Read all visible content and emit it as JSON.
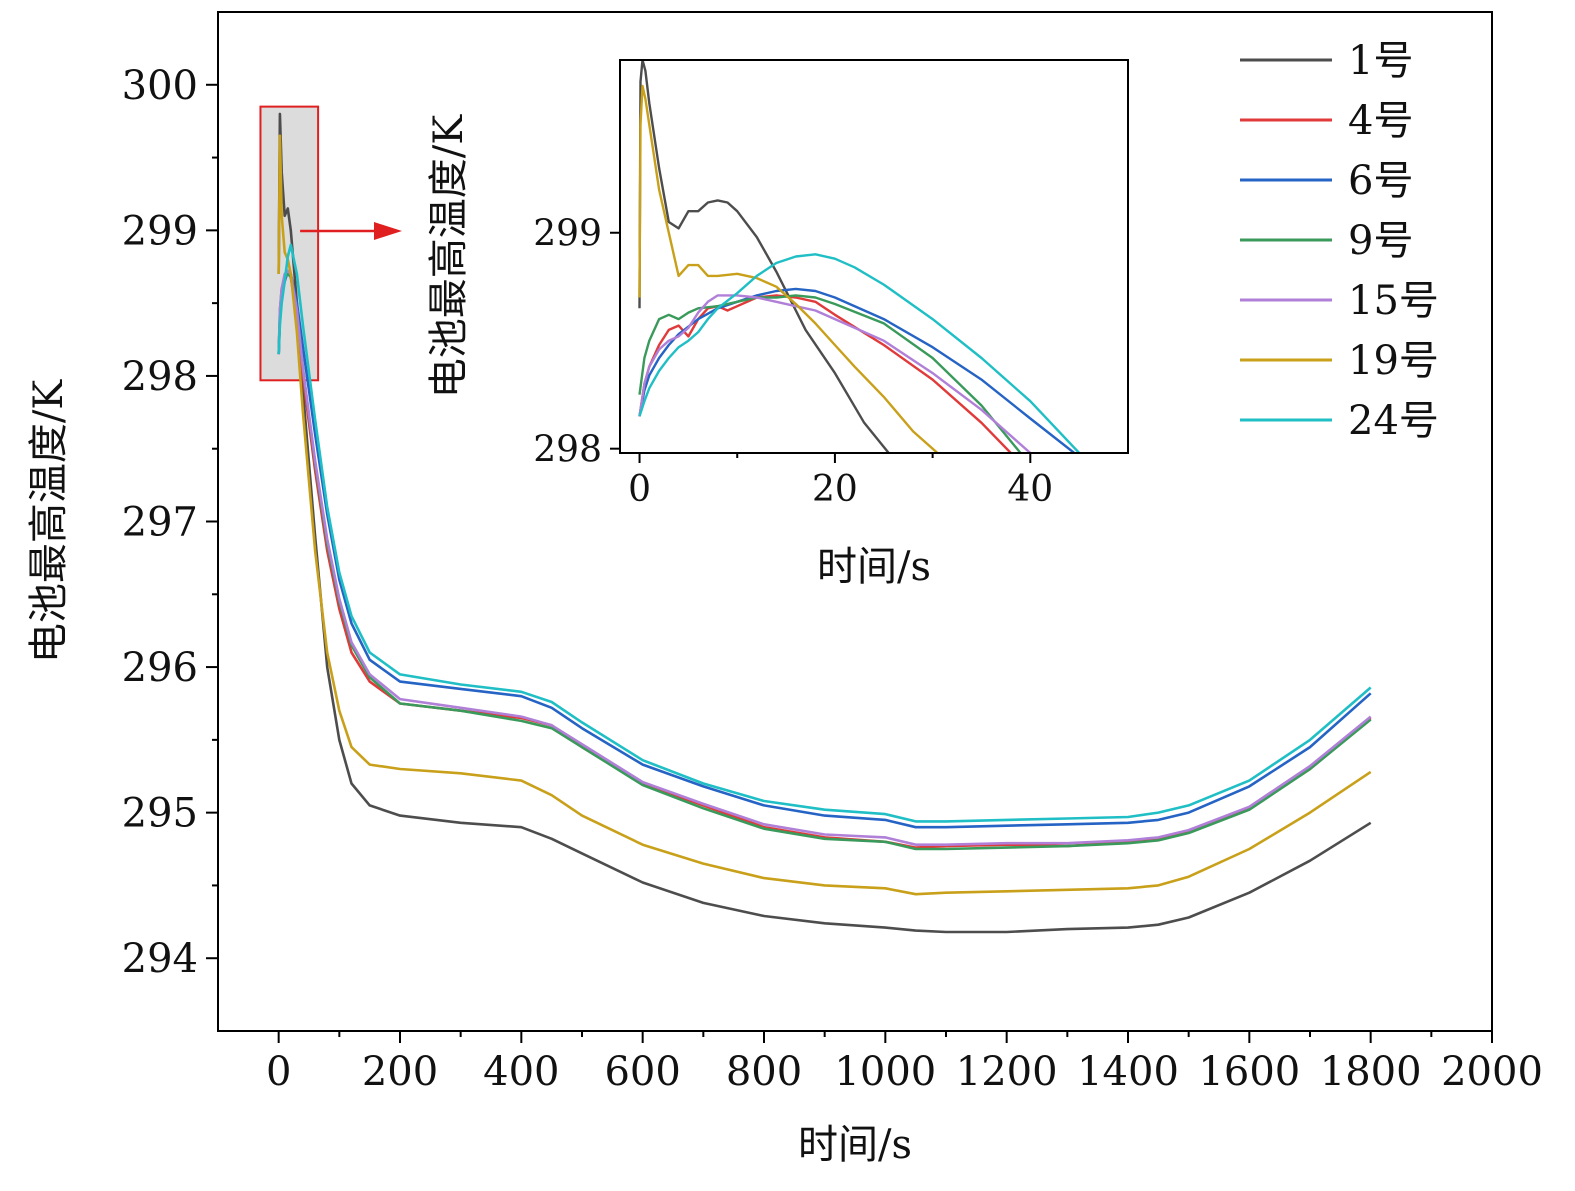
{
  "chart_data": [
    {
      "id": "main",
      "type": "line",
      "title": "",
      "xlabel": "时间/s",
      "ylabel": "电池最高温度/K",
      "xlim": [
        -100,
        2000
      ],
      "ylim": [
        293.5,
        300.5
      ],
      "xticks": [
        0,
        200,
        400,
        600,
        800,
        1000,
        1200,
        1400,
        1600,
        1800,
        2000
      ],
      "xtick_labels": [
        "0",
        "200",
        "400",
        "600",
        "800",
        "1000",
        "1200",
        "1400",
        "1600",
        "1800",
        "2000"
      ],
      "yticks": [
        294,
        295,
        296,
        297,
        298,
        299,
        300
      ],
      "ytick_labels": [
        "294",
        "295",
        "296",
        "297",
        "298",
        "299",
        "300"
      ],
      "highlight_region": {
        "x": [
          -30,
          65
        ],
        "y": [
          297.97,
          299.85
        ],
        "meaning": "enlarged in inset"
      },
      "series": [
        {
          "name": "1号",
          "color": "#4d4d4d",
          "x": [
            0,
            2,
            5,
            10,
            15,
            20,
            30,
            40,
            60,
            80,
            100,
            120,
            150,
            200,
            300,
            400,
            450,
            500,
            600,
            700,
            800,
            900,
            1000,
            1050,
            1100,
            1200,
            1300,
            1400,
            1450,
            1500,
            1600,
            1700,
            1800
          ],
          "y": [
            298.7,
            299.8,
            299.4,
            299.1,
            299.15,
            299.0,
            298.5,
            297.9,
            296.9,
            296.0,
            295.5,
            295.2,
            295.05,
            294.98,
            294.93,
            294.9,
            294.82,
            294.72,
            294.52,
            294.38,
            294.29,
            294.24,
            294.21,
            294.19,
            294.18,
            294.18,
            294.2,
            294.21,
            294.23,
            294.28,
            294.45,
            294.67,
            294.93
          ]
        },
        {
          "name": "4号",
          "color": "#e03a3a",
          "x": [
            0,
            2,
            5,
            10,
            15,
            20,
            30,
            40,
            60,
            80,
            100,
            120,
            150,
            200,
            300,
            400,
            450,
            500,
            600,
            700,
            800,
            900,
            1000,
            1050,
            1100,
            1200,
            1300,
            1400,
            1450,
            1500,
            1600,
            1700,
            1800
          ],
          "y": [
            298.15,
            298.4,
            298.55,
            298.65,
            298.72,
            298.68,
            298.4,
            298.0,
            297.35,
            296.8,
            296.4,
            296.1,
            295.9,
            295.75,
            295.7,
            295.65,
            295.6,
            295.45,
            295.2,
            295.05,
            294.9,
            294.83,
            294.8,
            294.76,
            294.77,
            294.78,
            294.77,
            294.8,
            294.82,
            294.87,
            295.03,
            295.3,
            295.65
          ]
        },
        {
          "name": "6号",
          "color": "#2563c5",
          "x": [
            0,
            2,
            5,
            10,
            15,
            20,
            30,
            40,
            60,
            80,
            100,
            120,
            150,
            200,
            300,
            400,
            450,
            500,
            600,
            700,
            800,
            900,
            1000,
            1050,
            1100,
            1200,
            1300,
            1400,
            1450,
            1500,
            1600,
            1700,
            1800
          ],
          "y": [
            298.15,
            298.4,
            298.55,
            298.65,
            298.72,
            298.7,
            298.5,
            298.2,
            297.6,
            297.05,
            296.6,
            296.3,
            296.05,
            295.9,
            295.85,
            295.8,
            295.72,
            295.58,
            295.33,
            295.18,
            295.05,
            294.98,
            294.95,
            294.9,
            294.9,
            294.91,
            294.92,
            294.93,
            294.95,
            295.0,
            295.18,
            295.45,
            295.82
          ]
        },
        {
          "name": "9号",
          "color": "#3a9a5b",
          "x": [
            0,
            2,
            5,
            10,
            15,
            20,
            30,
            40,
            60,
            80,
            100,
            120,
            150,
            200,
            300,
            400,
            450,
            500,
            600,
            700,
            800,
            900,
            1000,
            1050,
            1100,
            1200,
            1300,
            1400,
            1450,
            1500,
            1600,
            1700,
            1800
          ],
          "y": [
            298.15,
            298.45,
            298.6,
            298.68,
            298.7,
            298.68,
            298.45,
            298.05,
            297.4,
            296.85,
            296.45,
            296.15,
            295.93,
            295.75,
            295.7,
            295.63,
            295.58,
            295.45,
            295.19,
            295.03,
            294.89,
            294.82,
            294.8,
            294.75,
            294.75,
            294.76,
            294.77,
            294.79,
            294.81,
            294.86,
            295.02,
            295.3,
            295.64
          ]
        },
        {
          "name": "15号",
          "color": "#b07fd8",
          "x": [
            0,
            2,
            5,
            10,
            15,
            20,
            30,
            40,
            60,
            80,
            100,
            120,
            150,
            200,
            300,
            400,
            450,
            500,
            600,
            700,
            800,
            900,
            1000,
            1050,
            1100,
            1200,
            1300,
            1400,
            1450,
            1500,
            1600,
            1700,
            1800
          ],
          "y": [
            298.15,
            298.45,
            298.6,
            298.7,
            298.72,
            298.7,
            298.45,
            298.05,
            297.42,
            296.88,
            296.47,
            296.17,
            295.95,
            295.78,
            295.72,
            295.66,
            295.6,
            295.47,
            295.21,
            295.06,
            294.92,
            294.85,
            294.83,
            294.78,
            294.78,
            294.79,
            294.79,
            294.81,
            294.83,
            294.88,
            295.04,
            295.32,
            295.66
          ]
        },
        {
          "name": "19号",
          "color": "#c9a01a",
          "x": [
            0,
            2,
            5,
            10,
            15,
            20,
            30,
            40,
            60,
            80,
            100,
            120,
            150,
            200,
            300,
            400,
            450,
            500,
            600,
            700,
            800,
            900,
            1000,
            1050,
            1100,
            1200,
            1300,
            1400,
            1450,
            1500,
            1600,
            1700,
            1800
          ],
          "y": [
            298.7,
            299.65,
            299.1,
            298.85,
            298.8,
            298.7,
            298.3,
            297.75,
            296.8,
            296.1,
            295.7,
            295.45,
            295.33,
            295.3,
            295.27,
            295.22,
            295.12,
            294.98,
            294.78,
            294.65,
            294.55,
            294.5,
            294.48,
            294.44,
            294.45,
            294.46,
            294.47,
            294.48,
            294.5,
            294.56,
            294.75,
            295.0,
            295.28
          ]
        },
        {
          "name": "24号",
          "color": "#1fbfc5",
          "x": [
            0,
            2,
            5,
            10,
            15,
            20,
            30,
            40,
            60,
            80,
            100,
            120,
            150,
            200,
            300,
            400,
            450,
            500,
            600,
            700,
            800,
            900,
            1000,
            1050,
            1100,
            1200,
            1300,
            1400,
            1450,
            1500,
            1600,
            1700,
            1800
          ],
          "y": [
            298.15,
            298.35,
            298.5,
            298.65,
            298.82,
            298.9,
            298.7,
            298.35,
            297.7,
            297.1,
            296.65,
            296.35,
            296.1,
            295.95,
            295.88,
            295.83,
            295.76,
            295.62,
            295.36,
            295.2,
            295.08,
            295.02,
            294.99,
            294.94,
            294.94,
            294.95,
            294.96,
            294.97,
            295.0,
            295.05,
            295.22,
            295.5,
            295.86
          ]
        }
      ]
    },
    {
      "id": "inset",
      "type": "line",
      "title": "",
      "xlabel": "时间/s",
      "ylabel": "电池最高温度/K",
      "xlim": [
        -2,
        50
      ],
      "ylim": [
        297.98,
        299.8
      ],
      "xticks": [
        0,
        20,
        40
      ],
      "xtick_labels": [
        "0",
        "20",
        "40"
      ],
      "yticks": [
        298,
        299
      ],
      "ytick_labels": [
        "298",
        "299"
      ],
      "series": [
        {
          "name": "1号",
          "color": "#4d4d4d",
          "x": [
            0,
            0.1,
            0.3,
            0.6,
            1,
            2,
            3,
            4,
            5,
            6,
            7,
            8,
            9,
            10,
            12,
            14,
            17,
            20,
            23,
            25.5
          ],
          "y": [
            298.65,
            299.7,
            299.8,
            299.75,
            299.6,
            299.3,
            299.05,
            299.02,
            299.1,
            299.1,
            299.14,
            299.15,
            299.14,
            299.1,
            298.98,
            298.82,
            298.55,
            298.35,
            298.12,
            297.98
          ]
        },
        {
          "name": "4号",
          "color": "#e03a3a",
          "x": [
            0,
            0.5,
            1,
            2,
            3,
            4,
            5,
            6,
            7,
            8,
            9,
            10,
            12,
            14,
            16,
            18,
            20,
            25,
            30,
            35,
            38
          ],
          "y": [
            298.15,
            298.3,
            298.38,
            298.48,
            298.55,
            298.57,
            298.52,
            298.6,
            298.65,
            298.66,
            298.64,
            298.66,
            298.7,
            298.71,
            298.7,
            298.68,
            298.62,
            298.48,
            298.32,
            298.12,
            297.98
          ]
        },
        {
          "name": "6号",
          "color": "#2563c5",
          "x": [
            0,
            0.5,
            1,
            2,
            3,
            4,
            6,
            8,
            10,
            12,
            14,
            16,
            18,
            20,
            25,
            30,
            35,
            40,
            44.5
          ],
          "y": [
            298.15,
            298.27,
            298.34,
            298.42,
            298.48,
            298.53,
            298.6,
            298.65,
            298.68,
            298.71,
            298.73,
            298.74,
            298.73,
            298.7,
            298.6,
            298.47,
            298.32,
            298.14,
            297.98
          ]
        },
        {
          "name": "9号",
          "color": "#3a9a5b",
          "x": [
            0,
            0.5,
            1,
            2,
            3,
            4,
            5,
            6,
            8,
            10,
            12,
            14,
            16,
            18,
            20,
            25,
            30,
            35,
            39
          ],
          "y": [
            298.25,
            298.42,
            298.5,
            298.6,
            298.62,
            298.6,
            298.63,
            298.65,
            298.66,
            298.68,
            298.7,
            298.7,
            298.71,
            298.7,
            298.67,
            298.58,
            298.42,
            298.2,
            297.98
          ]
        },
        {
          "name": "15号",
          "color": "#b07fd8",
          "x": [
            0,
            0.5,
            1,
            2,
            3,
            4,
            5,
            6,
            7,
            8,
            10,
            12,
            14,
            16,
            18,
            20,
            25,
            30,
            35,
            40
          ],
          "y": [
            298.15,
            298.3,
            298.38,
            298.46,
            298.5,
            298.52,
            298.56,
            298.63,
            298.68,
            298.71,
            298.71,
            298.7,
            298.68,
            298.66,
            298.64,
            298.6,
            298.5,
            298.35,
            298.18,
            297.98
          ]
        },
        {
          "name": "19号",
          "color": "#c9a01a",
          "x": [
            0,
            0.1,
            0.3,
            0.6,
            1,
            2,
            3,
            4,
            5,
            6,
            7,
            8,
            10,
            12,
            14,
            16,
            18,
            20,
            22,
            25,
            28,
            30.5
          ],
          "y": [
            298.7,
            299.5,
            299.68,
            299.62,
            299.5,
            299.2,
            299.0,
            298.8,
            298.85,
            298.85,
            298.8,
            298.8,
            298.81,
            298.79,
            298.75,
            298.67,
            298.58,
            298.48,
            298.38,
            298.24,
            298.08,
            297.98
          ]
        },
        {
          "name": "24号",
          "color": "#1fbfc5",
          "x": [
            0,
            0.5,
            1,
            2,
            3,
            4,
            5,
            6,
            7,
            8,
            10,
            12,
            14,
            16,
            18,
            20,
            22,
            25,
            30,
            35,
            40,
            45
          ],
          "y": [
            298.15,
            298.22,
            298.28,
            298.36,
            298.42,
            298.47,
            298.5,
            298.54,
            298.6,
            298.65,
            298.72,
            298.8,
            298.86,
            298.89,
            298.9,
            298.88,
            298.84,
            298.76,
            298.6,
            298.42,
            298.22,
            297.98
          ]
        }
      ]
    }
  ]
}
